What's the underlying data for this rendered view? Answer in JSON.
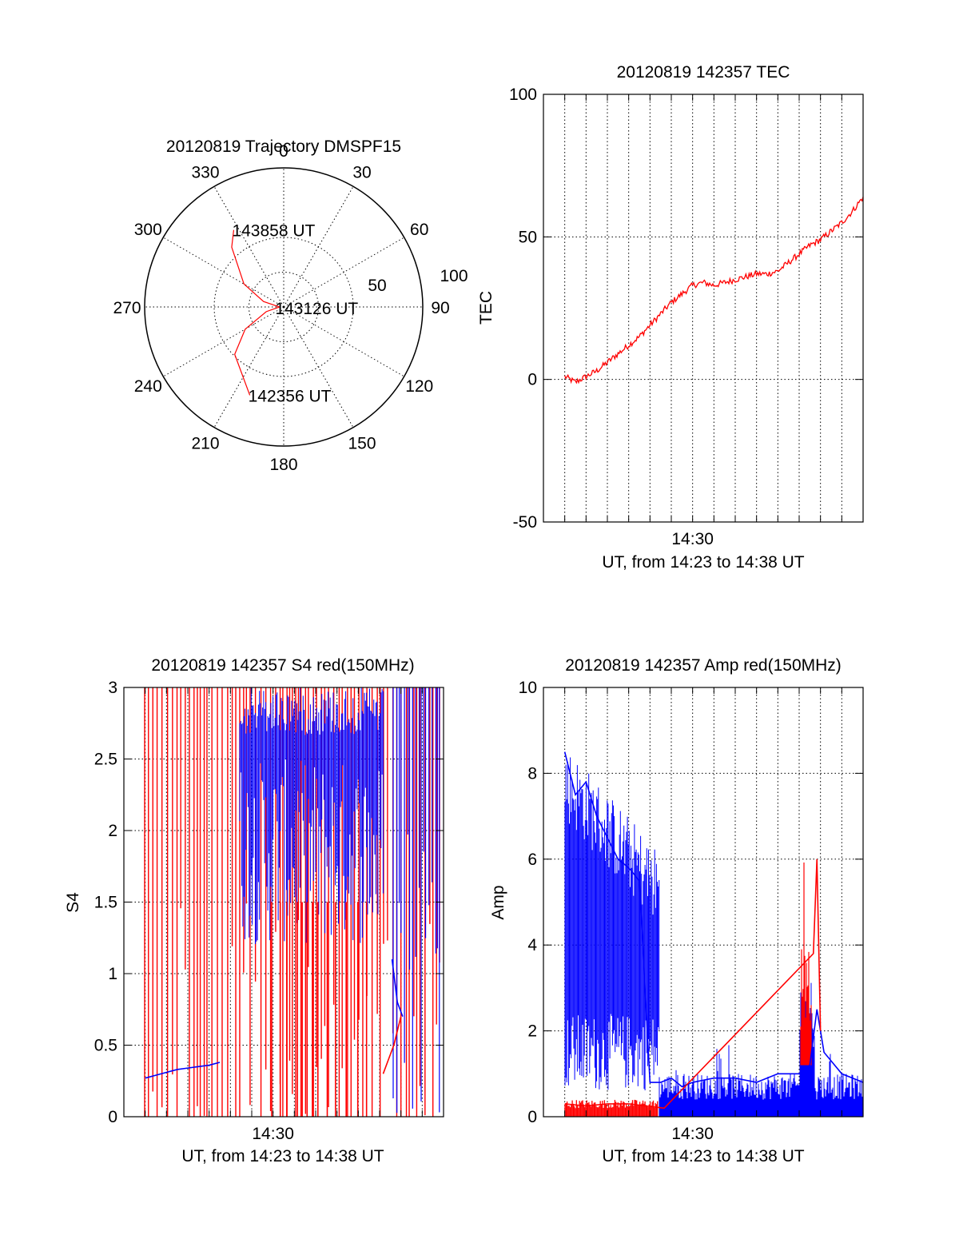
{
  "colors": {
    "red": "#ff0000",
    "blue": "#0000ff",
    "axis": "#000000"
  },
  "chart_data": [
    {
      "id": "trajectory",
      "type": "polar",
      "title": "20120819 Trajectory DMSPF15",
      "angle_labels": [
        "0",
        "30",
        "60",
        "90",
        "120",
        "150",
        "180",
        "210",
        "240",
        "270",
        "300",
        "330"
      ],
      "radial_labels": [
        "50",
        "100"
      ],
      "rlim": [
        0,
        100
      ],
      "grid": true,
      "series": [
        {
          "color": "red",
          "points": [
            [
              201,
              68
            ],
            [
              226,
              49
            ],
            [
              240,
              32
            ],
            [
              255,
              13
            ],
            [
              270,
              3
            ],
            [
              285,
              15
            ],
            [
              300,
              33
            ],
            [
              319,
              57
            ],
            [
              327,
              66
            ]
          ]
        }
      ],
      "annotations": [
        {
          "text": "142356 UT",
          "az": 201,
          "r": 68
        },
        {
          "text": "143126 UT",
          "az": 265,
          "r": 5
        },
        {
          "text": "143858 UT",
          "az": 327,
          "r": 66
        }
      ]
    },
    {
      "id": "tec",
      "type": "line",
      "title": "20120819 142357 TEC",
      "xlabel": "UT, from 14:23 to 14:38 UT",
      "ylabel": "TEC",
      "xlim": [
        "14:23:00",
        "14:38:00"
      ],
      "ylim": [
        -50,
        100
      ],
      "yticks": [
        -50,
        0,
        50,
        100
      ],
      "xticks": [
        {
          "t": "14:30:00",
          "label": "14:30"
        }
      ],
      "grid": true,
      "series": [
        {
          "color": "red",
          "x": [
            "14:24:00",
            "14:24:30",
            "14:25:00",
            "14:25:30",
            "14:26:00",
            "14:26:30",
            "14:27:00",
            "14:27:30",
            "14:28:00",
            "14:28:30",
            "14:29:00",
            "14:29:30",
            "14:30:00",
            "14:30:30",
            "14:31:00",
            "14:31:30",
            "14:32:00",
            "14:32:30",
            "14:33:00",
            "14:33:30",
            "14:34:00",
            "14:34:30",
            "14:35:00",
            "14:35:30",
            "14:36:00",
            "14:36:30",
            "14:37:00",
            "14:37:30",
            "14:38:00"
          ],
          "y": [
            1,
            -1,
            1,
            3,
            6,
            9,
            12,
            15,
            19,
            23,
            27,
            30,
            33,
            34,
            33,
            34,
            35,
            36,
            37,
            37,
            38,
            41,
            44,
            47,
            49,
            52,
            55,
            59,
            64
          ]
        }
      ]
    },
    {
      "id": "s4",
      "type": "line",
      "title": "20120819 142357 S4 red(150MHz)",
      "xlabel": "UT, from 14:23 to 14:38 UT",
      "ylabel": "S4",
      "xlim": [
        "14:23:00",
        "14:38:00"
      ],
      "ylim": [
        0,
        3
      ],
      "yticks": [
        0,
        0.5,
        1,
        1.5,
        2,
        2.5,
        3
      ],
      "xticks": [
        {
          "t": "14:30:00",
          "label": "14:30"
        }
      ],
      "grid": true,
      "series": [
        {
          "color": "blue",
          "x": [
            "14:24:00",
            "14:24:30",
            "14:25:00",
            "14:25:30",
            "14:26:00",
            "14:26:30",
            "14:27:00",
            "14:27:30"
          ],
          "y": [
            0.27,
            0.29,
            0.31,
            0.33,
            0.34,
            0.35,
            0.36,
            0.38
          ]
        },
        {
          "color": "blue",
          "x": [
            "14:35:35",
            "14:35:50",
            "14:36:05"
          ],
          "y": [
            1.1,
            0.8,
            0.7
          ]
        },
        {
          "color": "red",
          "x": [
            "14:35:10",
            "14:35:25",
            "14:35:40",
            "14:36:00"
          ],
          "y": [
            0.3,
            0.4,
            0.5,
            0.7
          ]
        }
      ]
    },
    {
      "id": "amp",
      "type": "line",
      "title": "20120819 142357 Amp red(150MHz)",
      "xlabel": "UT, from 14:23 to 14:38 UT",
      "ylabel": "Amp",
      "xlim": [
        "14:23:00",
        "14:38:00"
      ],
      "ylim": [
        0,
        10
      ],
      "yticks": [
        0,
        2,
        4,
        6,
        8,
        10
      ],
      "xticks": [
        {
          "t": "14:30:00",
          "label": "14:30"
        }
      ],
      "grid": true,
      "series": [
        {
          "color": "blue",
          "x": [
            "14:24:00",
            "14:24:30",
            "14:25:00",
            "14:25:30",
            "14:26:00",
            "14:26:30",
            "14:27:00",
            "14:27:30",
            "14:28:00",
            "14:28:30",
            "14:29:00",
            "14:29:30",
            "14:30:00",
            "14:31:00",
            "14:32:00",
            "14:33:00",
            "14:34:00",
            "14:35:00",
            "14:35:30",
            "14:35:50",
            "14:36:10",
            "14:37:00",
            "14:38:00"
          ],
          "y": [
            8.5,
            7.5,
            7.8,
            7.0,
            6.5,
            6.0,
            5.8,
            5.5,
            0.8,
            0.8,
            0.9,
            0.7,
            0.8,
            0.9,
            0.9,
            0.8,
            1.0,
            1.0,
            1.2,
            2.5,
            1.5,
            1.0,
            0.8
          ]
        },
        {
          "color": "red",
          "x": [
            "14:24:00",
            "14:25:00",
            "14:26:00",
            "14:27:00",
            "14:28:40",
            "14:35:40",
            "14:35:50",
            "14:36:00"
          ],
          "y": [
            0.3,
            0.25,
            0.3,
            0.3,
            0.2,
            3.8,
            6.0,
            2.0
          ]
        }
      ]
    }
  ]
}
